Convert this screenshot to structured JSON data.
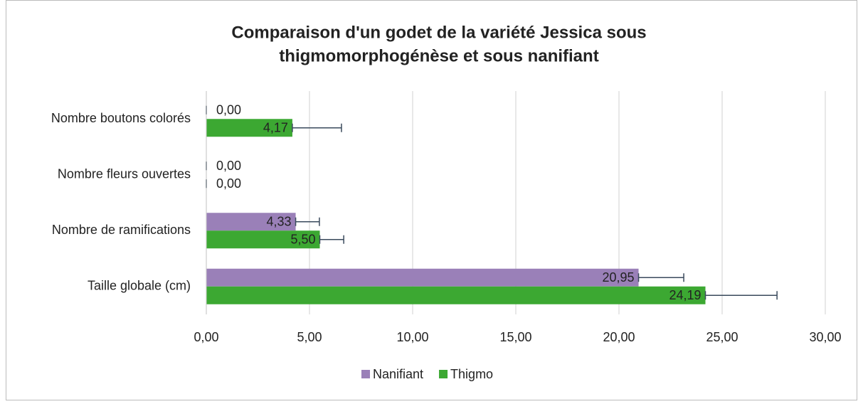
{
  "chart_data": {
    "type": "bar",
    "orientation": "horizontal",
    "title": [
      "Comparaison d'un godet de la variété Jessica sous",
      "thigmomorphogénèse et sous nanifiant"
    ],
    "categories": [
      "Nombre boutons colorés",
      "Nombre fleurs ouvertes",
      "Nombre de ramifications",
      "Taille globale (cm)"
    ],
    "series": [
      {
        "name": "Nanifiant",
        "color": "#9a80b8",
        "values": [
          0,
          0,
          4.33,
          20.95
        ],
        "value_labels": [
          "0,00",
          "0,00",
          "4,33",
          "20,95"
        ],
        "errors": [
          0,
          0,
          1.15,
          2.19
        ]
      },
      {
        "name": "Thigmo",
        "color": "#3ca832",
        "values": [
          4.17,
          0,
          5.5,
          24.19
        ],
        "value_labels": [
          "4,17",
          "0,00",
          "5,50",
          "24,19"
        ],
        "errors": [
          2.38,
          0,
          1.16,
          3.47
        ]
      }
    ],
    "xlim": [
      0,
      30
    ],
    "xticks": [
      {
        "value": 0,
        "label": "0,00"
      },
      {
        "value": 5,
        "label": "5,00"
      },
      {
        "value": 10,
        "label": "10,00"
      },
      {
        "value": 15,
        "label": "15,00"
      },
      {
        "value": 20,
        "label": "20,00"
      },
      {
        "value": 25,
        "label": "25,00"
      },
      {
        "value": 30,
        "label": "30,00"
      }
    ],
    "grid": true,
    "legend": "bottom"
  }
}
